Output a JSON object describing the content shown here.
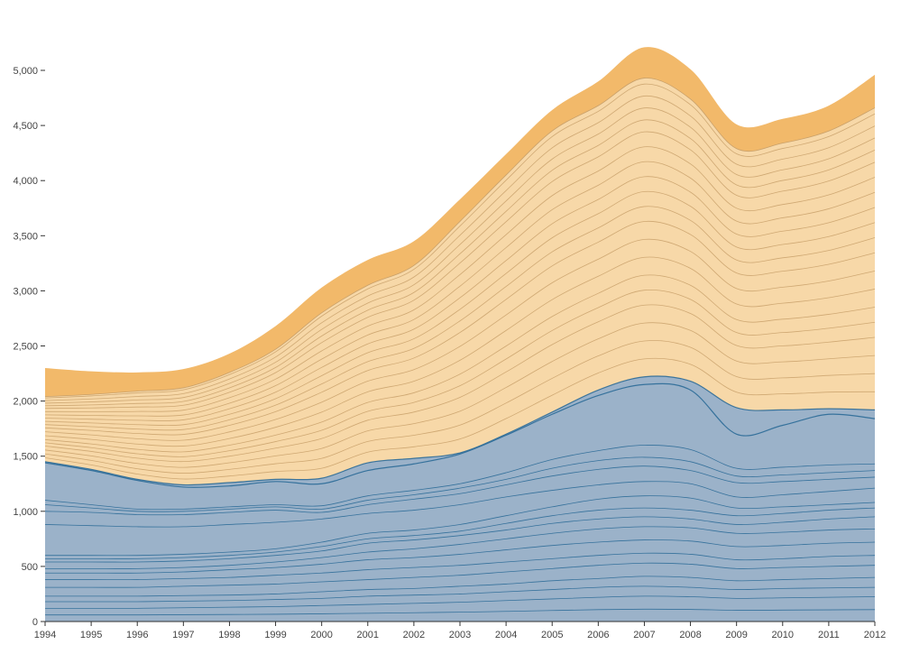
{
  "chart_data": {
    "type": "area",
    "stacked": true,
    "title": "",
    "xlabel": "",
    "ylabel": "",
    "x": [
      1994,
      1995,
      1996,
      1997,
      1998,
      1999,
      2000,
      2001,
      2002,
      2003,
      2004,
      2005,
      2006,
      2007,
      2008,
      2009,
      2010,
      2011,
      2012
    ],
    "xlim": [
      1994,
      2012
    ],
    "ylim": [
      0,
      5000
    ],
    "y_ticks": [
      0,
      500,
      1000,
      1500,
      2000,
      2500,
      3000,
      3500,
      4000,
      4500,
      5000
    ],
    "y_tick_labels": [
      "0",
      "500",
      "1,000",
      "1,500",
      "2,000",
      "2,500",
      "3,000",
      "3,500",
      "4,000",
      "4,500",
      "5,000"
    ],
    "x_tick_labels": [
      "1994",
      "1995",
      "1996",
      "1997",
      "1998",
      "1999",
      "2000",
      "2001",
      "2002",
      "2003",
      "2004",
      "2005",
      "2006",
      "2007",
      "2008",
      "2009",
      "2010",
      "2011",
      "2012"
    ],
    "grid": false,
    "legend": "none",
    "series": [
      {
        "group": "blue",
        "values": [
          1450,
          1380,
          1290,
          1240,
          1260,
          1290,
          1300,
          1440,
          1480,
          1530,
          1700,
          1900,
          2100,
          2220,
          2180,
          1940,
          1920,
          1930,
          1920
        ]
      },
      {
        "group": "light-orange",
        "values": [
          590,
          680,
          800,
          880,
          1000,
          1180,
          1500,
          1610,
          1750,
          2100,
          2350,
          2550,
          2580,
          2710,
          2560,
          2350,
          2420,
          2520,
          2740
        ]
      },
      {
        "group": "dark-orange",
        "values": [
          260,
          210,
          170,
          170,
          170,
          210,
          230,
          230,
          220,
          200,
          190,
          190,
          220,
          280,
          270,
          220,
          220,
          230,
          300
        ]
      }
    ],
    "blue_internal_lines": [
      [
        1450,
        1380,
        1290,
        1240,
        1260,
        1290,
        1300,
        1440,
        1480,
        1530,
        1700,
        1900,
        2100,
        2220,
        2180,
        1940,
        1920,
        1930,
        1920
      ],
      [
        1440,
        1370,
        1280,
        1220,
        1230,
        1270,
        1250,
        1370,
        1430,
        1520,
        1690,
        1880,
        2050,
        2150,
        2100,
        1700,
        1780,
        1880,
        1840
      ],
      [
        1100,
        1060,
        1020,
        1020,
        1040,
        1060,
        1050,
        1140,
        1190,
        1250,
        1350,
        1470,
        1550,
        1600,
        1560,
        1390,
        1400,
        1420,
        1430
      ],
      [
        1060,
        1030,
        1000,
        1000,
        1020,
        1040,
        1020,
        1100,
        1150,
        1210,
        1290,
        1390,
        1460,
        1490,
        1450,
        1320,
        1330,
        1350,
        1370
      ],
      [
        1000,
        990,
        970,
        970,
        990,
        1010,
        990,
        1060,
        1110,
        1160,
        1240,
        1320,
        1380,
        1410,
        1370,
        1260,
        1270,
        1290,
        1310
      ],
      [
        880,
        870,
        860,
        860,
        880,
        900,
        930,
        980,
        1010,
        1060,
        1130,
        1190,
        1240,
        1270,
        1250,
        1130,
        1150,
        1180,
        1210
      ],
      [
        600,
        600,
        600,
        610,
        630,
        660,
        720,
        800,
        830,
        880,
        960,
        1040,
        1110,
        1140,
        1120,
        1030,
        1040,
        1060,
        1080
      ],
      [
        570,
        570,
        570,
        580,
        600,
        630,
        680,
        750,
        780,
        820,
        890,
        960,
        1010,
        1030,
        1010,
        960,
        980,
        1010,
        1030
      ],
      [
        540,
        540,
        540,
        550,
        570,
        600,
        640,
        710,
        740,
        780,
        830,
        890,
        930,
        950,
        930,
        880,
        900,
        930,
        950
      ],
      [
        480,
        480,
        480,
        490,
        510,
        540,
        580,
        630,
        660,
        700,
        750,
        800,
        840,
        860,
        850,
        800,
        810,
        830,
        840
      ],
      [
        440,
        440,
        440,
        450,
        470,
        490,
        520,
        560,
        580,
        610,
        650,
        690,
        720,
        740,
        730,
        680,
        690,
        710,
        720
      ],
      [
        380,
        380,
        380,
        390,
        400,
        420,
        440,
        470,
        490,
        510,
        540,
        570,
        600,
        620,
        610,
        560,
        570,
        590,
        600
      ],
      [
        310,
        310,
        310,
        320,
        330,
        340,
        360,
        380,
        400,
        420,
        450,
        480,
        510,
        530,
        520,
        480,
        490,
        500,
        510
      ],
      [
        230,
        230,
        230,
        235,
        240,
        250,
        270,
        290,
        300,
        320,
        340,
        370,
        390,
        410,
        400,
        370,
        380,
        390,
        400
      ],
      [
        180,
        180,
        180,
        185,
        190,
        200,
        210,
        230,
        240,
        250,
        270,
        290,
        310,
        320,
        310,
        290,
        300,
        305,
        310
      ],
      [
        120,
        120,
        120,
        125,
        130,
        135,
        145,
        155,
        165,
        175,
        190,
        205,
        220,
        230,
        225,
        210,
        215,
        220,
        225
      ],
      [
        60,
        60,
        60,
        62,
        64,
        66,
        70,
        75,
        80,
        85,
        92,
        100,
        108,
        112,
        110,
        102,
        104,
        106,
        108
      ]
    ],
    "colors": {
      "blue_fill": "#9bb2c9",
      "blue_line": "#2b6a97",
      "light_orange_fill": "#f7d8a8",
      "orange_line": "#c8a06a",
      "dark_orange_fill": "#f2b96a",
      "axis": "#333333",
      "tick_text": "#444444"
    }
  }
}
